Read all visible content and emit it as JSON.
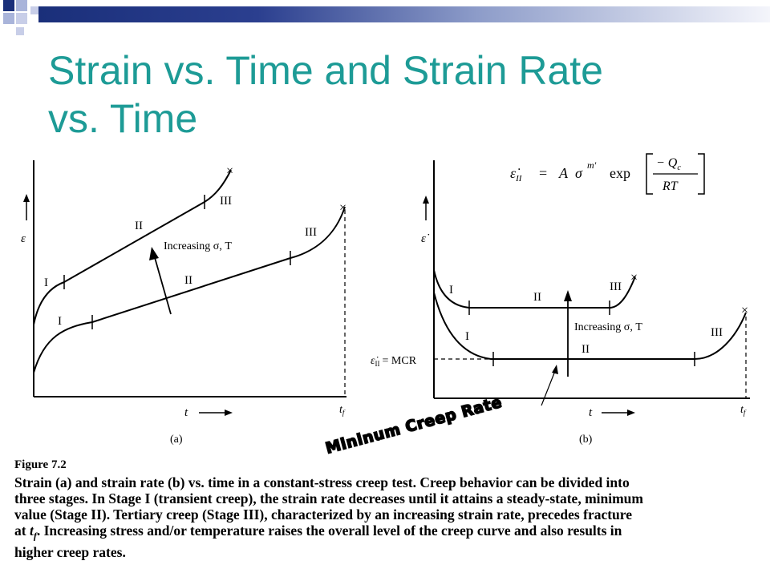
{
  "slide": {
    "title_line1": "Strain vs. Time and Strain Rate",
    "title_line2": "vs. Time"
  },
  "colors": {
    "title": "#1d9b96",
    "bar_dark": "#1a2f7a",
    "bar_light": "#8d9cc9"
  },
  "panel_a": {
    "y_label": "ε",
    "x_label": "t",
    "tf_label": "t",
    "tf_sub": "f",
    "sublabel": "(a)",
    "upper_stages": [
      "I",
      "II",
      "III"
    ],
    "lower_stages": [
      "I",
      "II",
      "III"
    ],
    "arrow_label": "Increasing σ, T",
    "fracture_mark": "×"
  },
  "panel_b": {
    "y_label": "ε̇",
    "x_label": "t",
    "tf_label": "t",
    "tf_sub": "f",
    "sublabel": "(b)",
    "upper_stages": [
      "I",
      "II",
      "III"
    ],
    "lower_stages": [
      "I",
      "II",
      "III"
    ],
    "arrow_label": "Increasing σ, T",
    "mcr_label": "ε̇",
    "mcr_sub": "II",
    "mcr_text": "= MCR",
    "fracture_mark": "×"
  },
  "equation": {
    "lhs": "ε̇",
    "lhs_sub": "II",
    "eq": "=",
    "A": "A",
    "sigma": "σ",
    "m_sup": "m'",
    "exp": "exp",
    "numerator": "− Q",
    "num_sub": "c",
    "denominator": "RT"
  },
  "annotation": {
    "text": "Mininum Creep Rate"
  },
  "caption": {
    "heading": "Figure 7.2",
    "line1": "Strain (a) and strain rate (b) vs.  time in a constant-stress creep test.  Creep behavior can be divided into",
    "line2": "three stages.  In Stage I (transient creep), the strain rate decreases until it attains a steady-state, minimum",
    "line3": "value (Stage II).  Tertiary creep (Stage III), characterized by an increasing strain rate, precedes fracture",
    "line4_a": "at ",
    "line4_t": "t",
    "line4_f": "f",
    "line4_b": ".  Increasing stress and/or temperature raises the overall level of the creep curve and also results in",
    "line5": "higher creep rates."
  }
}
